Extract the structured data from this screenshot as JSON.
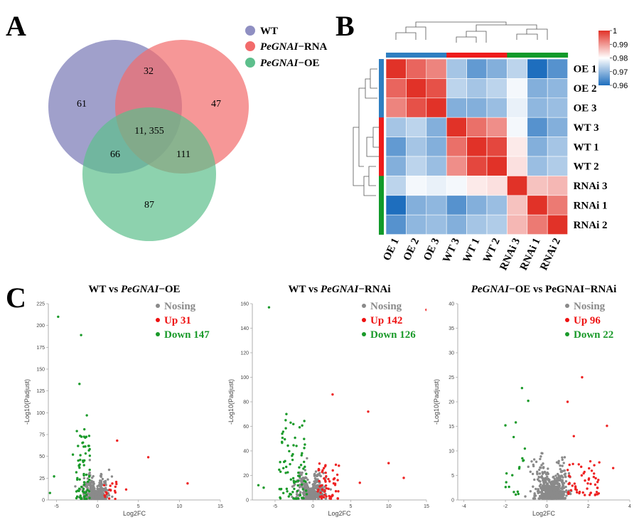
{
  "panels": {
    "a": "A",
    "b": "B",
    "c": "C"
  },
  "venn": {
    "sets": [
      {
        "name_italic": "",
        "name_rest": "WT",
        "color": "#8f8fc2"
      },
      {
        "name_italic": "PeGNAI",
        "name_rest": "−RNA",
        "color": "#f26b6b"
      },
      {
        "name_italic": "PeGNAI",
        "name_rest": "−OE",
        "color": "#5dbf8c"
      }
    ],
    "values": {
      "wt_only": "61",
      "rna_only": "47",
      "oe_only": "87",
      "wt_rna": "32",
      "wt_oe": "66",
      "rna_oe": "111",
      "all": "11, 355"
    }
  },
  "heatmap": {
    "row_labels": [
      "OE 1",
      "OE 2",
      "OE 3",
      "WT 3",
      "WT 1",
      "WT 2",
      "RNAi 3",
      "RNAi 1",
      "RNAi 2"
    ],
    "col_labels": [
      "OE 1",
      "OE 2",
      "OE 3",
      "WT 3",
      "WT 1",
      "WT 2",
      "RNAi 3",
      "RNAi 1",
      "RNAi 2"
    ],
    "group_colors": [
      "#2f7fc1",
      "#ee1c1c",
      "#119a2a"
    ],
    "groups_per_index": [
      0,
      0,
      0,
      1,
      1,
      1,
      2,
      2,
      2
    ],
    "colorbar": {
      "ticks": [
        "1",
        "0.99",
        "0.98",
        "0.97",
        "0.96"
      ],
      "min": 0.96,
      "max": 1
    },
    "values": [
      [
        1.0,
        0.995,
        0.992,
        0.972,
        0.966,
        0.969,
        0.974,
        0.959,
        0.965
      ],
      [
        0.995,
        1.0,
        0.997,
        0.974,
        0.972,
        0.974,
        0.979,
        0.969,
        0.97
      ],
      [
        0.992,
        0.997,
        1.0,
        0.969,
        0.969,
        0.971,
        0.978,
        0.97,
        0.971
      ],
      [
        0.972,
        0.974,
        0.969,
        1.0,
        0.994,
        0.991,
        0.979,
        0.965,
        0.969
      ],
      [
        0.966,
        0.972,
        0.969,
        0.994,
        1.0,
        0.998,
        0.982,
        0.969,
        0.972
      ],
      [
        0.969,
        0.974,
        0.971,
        0.991,
        0.998,
        1.0,
        0.983,
        0.971,
        0.973
      ],
      [
        0.974,
        0.979,
        0.978,
        0.979,
        0.982,
        0.983,
        1.0,
        0.986,
        0.987
      ],
      [
        0.959,
        0.969,
        0.97,
        0.965,
        0.969,
        0.971,
        0.986,
        1.0,
        0.993
      ],
      [
        0.965,
        0.97,
        0.971,
        0.969,
        0.972,
        0.973,
        0.987,
        0.993,
        1.0
      ]
    ]
  },
  "volcanoes": [
    {
      "title_a": "WT vs ",
      "title_b": "PeGNAI",
      "title_c": "−OE",
      "xlabel": "Log2FC",
      "ylabel": "-Log10(Padjust)",
      "xlim": [
        -6,
        15
      ],
      "ylim": [
        0,
        225
      ],
      "xticks": [
        -5,
        0,
        5,
        10,
        15
      ],
      "yticks": [
        0,
        25,
        50,
        75,
        100,
        125,
        150,
        175,
        200,
        225
      ],
      "legend": [
        "Nosing",
        "Up 31",
        "Down 147"
      ]
    },
    {
      "title_a": "WT vs ",
      "title_b": "PeGNAI",
      "title_c": "−RNAi",
      "xlabel": "Log2FC",
      "ylabel": "-Log10(Padjust)",
      "xlim": [
        -8,
        15
      ],
      "ylim": [
        0,
        160
      ],
      "xticks": [
        -5,
        0,
        5,
        10,
        15
      ],
      "yticks": [
        0,
        20,
        40,
        60,
        80,
        100,
        120,
        140,
        160
      ],
      "legend": [
        "Nosing",
        "Up 142",
        "Down 126"
      ]
    },
    {
      "title_a": "",
      "title_b": "PeGNAI",
      "title_c": "−OE vs PeGNAI−RNAi",
      "xlabel": "Log2FC",
      "ylabel": "-Log10(Padjust)",
      "xlim": [
        -4.3,
        4
      ],
      "ylim": [
        0,
        40
      ],
      "xticks": [
        -4,
        -2,
        0,
        2,
        4
      ],
      "yticks": [
        0,
        5,
        10,
        15,
        20,
        25,
        30,
        35,
        40
      ],
      "legend": [
        "Nosing",
        "Up 96",
        "Down 22"
      ]
    }
  ],
  "chart_data": [
    {
      "type": "venn",
      "sets": [
        "WT",
        "PeGNAI−RNA",
        "PeGNAI−OE"
      ],
      "regions": {
        "WT only": 61,
        "PeGNAI−RNA only": 47,
        "PeGNAI−OE only": 87,
        "WT & RNA": 32,
        "WT & OE": 66,
        "RNA & OE": 111,
        "all": 11355
      }
    },
    {
      "type": "heatmap",
      "categories": [
        "OE 1",
        "OE 2",
        "OE 3",
        "WT 3",
        "WT 1",
        "WT 2",
        "RNAi 3",
        "RNAi 1",
        "RNAi 2"
      ],
      "value_range": [
        0.96,
        1
      ]
    },
    {
      "type": "scatter",
      "title": "WT vs PeGNAI−OE",
      "xlabel": "Log2FC",
      "ylabel": "-Log10(Padjust)",
      "xlim": [
        -6,
        15
      ],
      "ylim": [
        0,
        225
      ],
      "series": [
        {
          "name": "Nosing"
        },
        {
          "name": "Up 31"
        },
        {
          "name": "Down 147"
        }
      ]
    },
    {
      "type": "scatter",
      "title": "WT vs PeGNAI−RNAi",
      "xlabel": "Log2FC",
      "ylabel": "-Log10(Padjust)",
      "xlim": [
        -8,
        15
      ],
      "ylim": [
        0,
        160
      ],
      "series": [
        {
          "name": "Nosing"
        },
        {
          "name": "Up 142"
        },
        {
          "name": "Down 126"
        }
      ]
    },
    {
      "type": "scatter",
      "title": "PeGNAI−OE vs PeGNAI−RNAi",
      "xlabel": "Log2FC",
      "ylabel": "-Log10(Padjust)",
      "xlim": [
        -4.3,
        4
      ],
      "ylim": [
        0,
        40
      ],
      "series": [
        {
          "name": "Nosing"
        },
        {
          "name": "Up 96"
        },
        {
          "name": "Down 22"
        }
      ]
    }
  ]
}
